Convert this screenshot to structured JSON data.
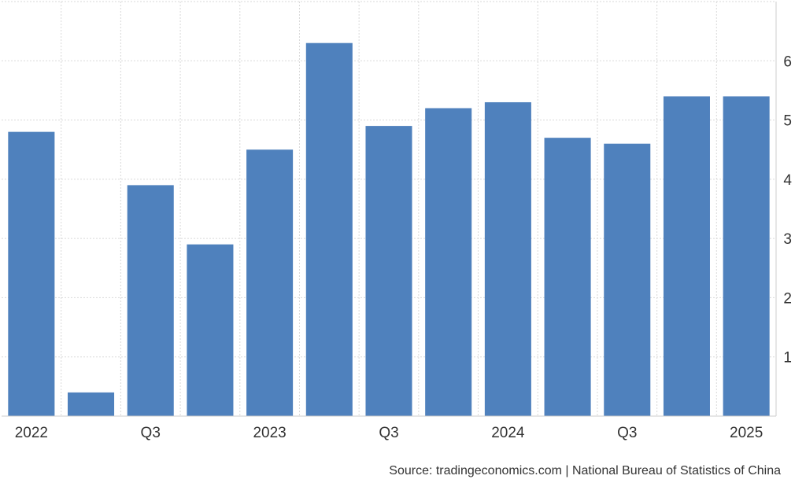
{
  "chart_data": {
    "type": "bar",
    "categories": [
      "2022 Q1",
      "2022 Q2",
      "2022 Q3",
      "2022 Q4",
      "2023 Q1",
      "2023 Q2",
      "2023 Q3",
      "2023 Q4",
      "2024 Q1",
      "2024 Q2",
      "2024 Q3",
      "2024 Q4",
      "2025 Q1"
    ],
    "values": [
      4.8,
      0.4,
      3.9,
      2.9,
      4.5,
      6.3,
      4.9,
      5.2,
      5.3,
      4.7,
      4.6,
      5.4,
      5.4
    ],
    "x_tick_labels": [
      "2022",
      "Q3",
      "2023",
      "Q3",
      "2024",
      "Q3",
      "2025"
    ],
    "y_ticks": [
      1,
      2,
      3,
      4,
      5,
      6
    ],
    "ylim": [
      0,
      7
    ],
    "y_axis_side": "right",
    "grid": true,
    "title": "",
    "xlabel": "",
    "ylabel": "",
    "bar_color": "#4f81bd",
    "grid_color": "#d9d9d9"
  },
  "source": "Source: tradingeconomics.com | National Bureau of Statistics of China"
}
